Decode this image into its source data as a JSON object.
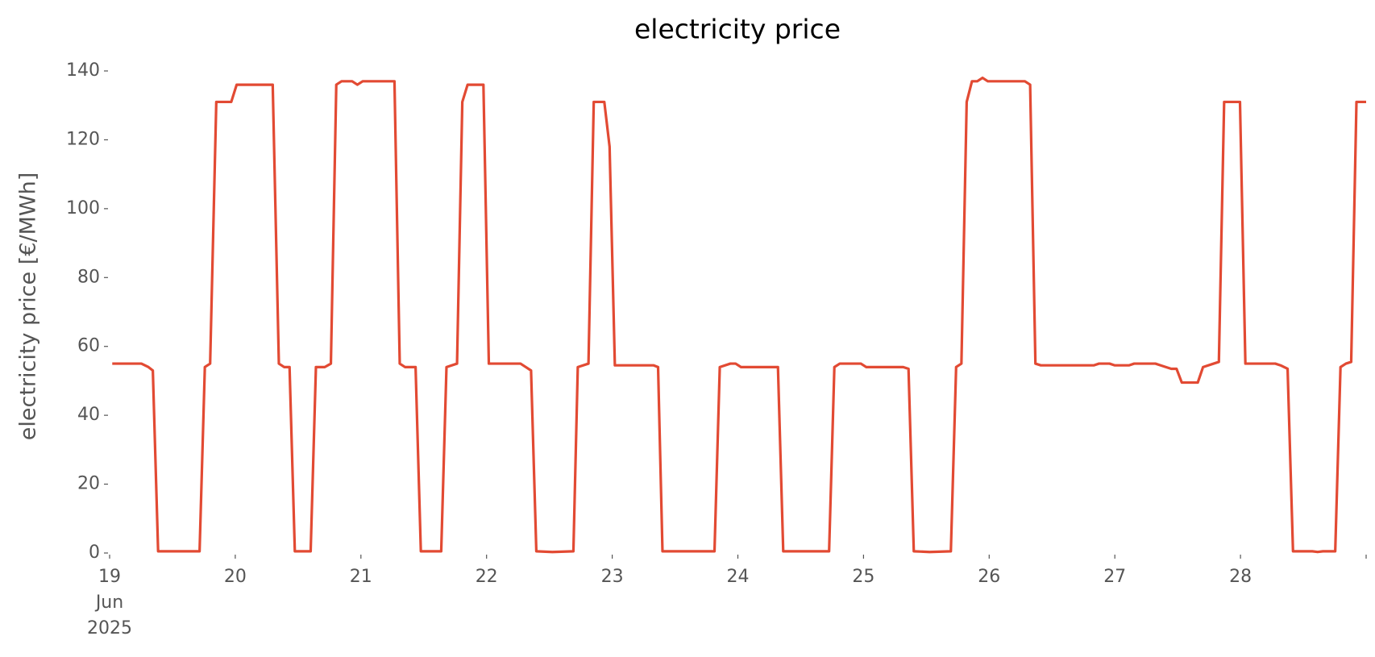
{
  "chart_data": {
    "type": "line",
    "title": "electricity price",
    "ylabel": "electricity price [€/MWh]",
    "x": [
      19.021,
      19.253,
      19.309,
      19.344,
      19.386,
      19.716,
      19.758,
      19.8,
      19.849,
      19.968,
      20.011,
      20.298,
      20.347,
      20.389,
      20.432,
      20.474,
      20.6,
      20.642,
      20.712,
      20.761,
      20.804,
      20.846,
      20.93,
      20.972,
      21.014,
      21.267,
      21.309,
      21.351,
      21.435,
      21.477,
      21.639,
      21.681,
      21.765,
      21.807,
      21.849,
      21.975,
      22.018,
      22.27,
      22.312,
      22.354,
      22.396,
      22.523,
      22.691,
      22.726,
      22.811,
      22.853,
      22.937,
      22.979,
      23.021,
      23.33,
      23.365,
      23.4,
      23.814,
      23.856,
      23.94,
      23.982,
      24.025,
      24.319,
      24.361,
      24.726,
      24.768,
      24.811,
      24.853,
      24.979,
      25.021,
      25.316,
      25.358,
      25.4,
      25.526,
      25.695,
      25.737,
      25.779,
      25.821,
      25.863,
      25.905,
      25.947,
      25.989,
      26.284,
      26.326,
      26.368,
      26.411,
      26.832,
      26.874,
      26.958,
      27,
      27.112,
      27.154,
      27.323,
      27.365,
      27.407,
      27.449,
      27.491,
      27.533,
      27.66,
      27.702,
      27.786,
      27.828,
      27.87,
      27.996,
      28.039,
      28.277,
      28.319,
      28.375,
      28.418,
      28.572,
      28.614,
      28.656,
      28.754,
      28.796,
      28.839,
      28.881,
      28.923,
      29.0
    ],
    "series": [
      {
        "name": "electricity price",
        "color": "#e24a33",
        "values": [
          55,
          55,
          54,
          53,
          0.5,
          0.5,
          54,
          55,
          131,
          131,
          136,
          136,
          55,
          54,
          54,
          0.5,
          0.5,
          54,
          54,
          55,
          136,
          137,
          137,
          136,
          137,
          137,
          55,
          54,
          54,
          0.5,
          0.5,
          54,
          55,
          131,
          136,
          136,
          55,
          55,
          54,
          53,
          0.5,
          0.3,
          0.5,
          54,
          55,
          131,
          131,
          118,
          54.5,
          54.5,
          54,
          0.5,
          0.5,
          54,
          55,
          55,
          54,
          54,
          0.5,
          0.5,
          54,
          55,
          55,
          55,
          54,
          54,
          53.5,
          0.5,
          0.3,
          0.5,
          54,
          55,
          131,
          137,
          137,
          138,
          137,
          137,
          136,
          55,
          54.5,
          54.5,
          55,
          55,
          54.5,
          54.5,
          55,
          55,
          54.5,
          54,
          53.5,
          53.5,
          49.5,
          49.5,
          54,
          55,
          55.5,
          131,
          131,
          55,
          55,
          54.5,
          53.5,
          0.5,
          0.5,
          0.3,
          0.5,
          0.5,
          54,
          55,
          55.5,
          131,
          131
        ]
      }
    ],
    "xlim": [
      19,
      29
    ],
    "xticks": [
      {
        "value": 19,
        "label": "19\nJun\n2025"
      },
      20,
      21,
      22,
      23,
      24,
      25,
      26,
      27,
      28,
      {
        "value": 29,
        "label": null
      }
    ],
    "ylim": [
      0,
      140
    ],
    "yticks": [
      0,
      20,
      40,
      60,
      80,
      100,
      120,
      140
    ],
    "grid": false
  }
}
